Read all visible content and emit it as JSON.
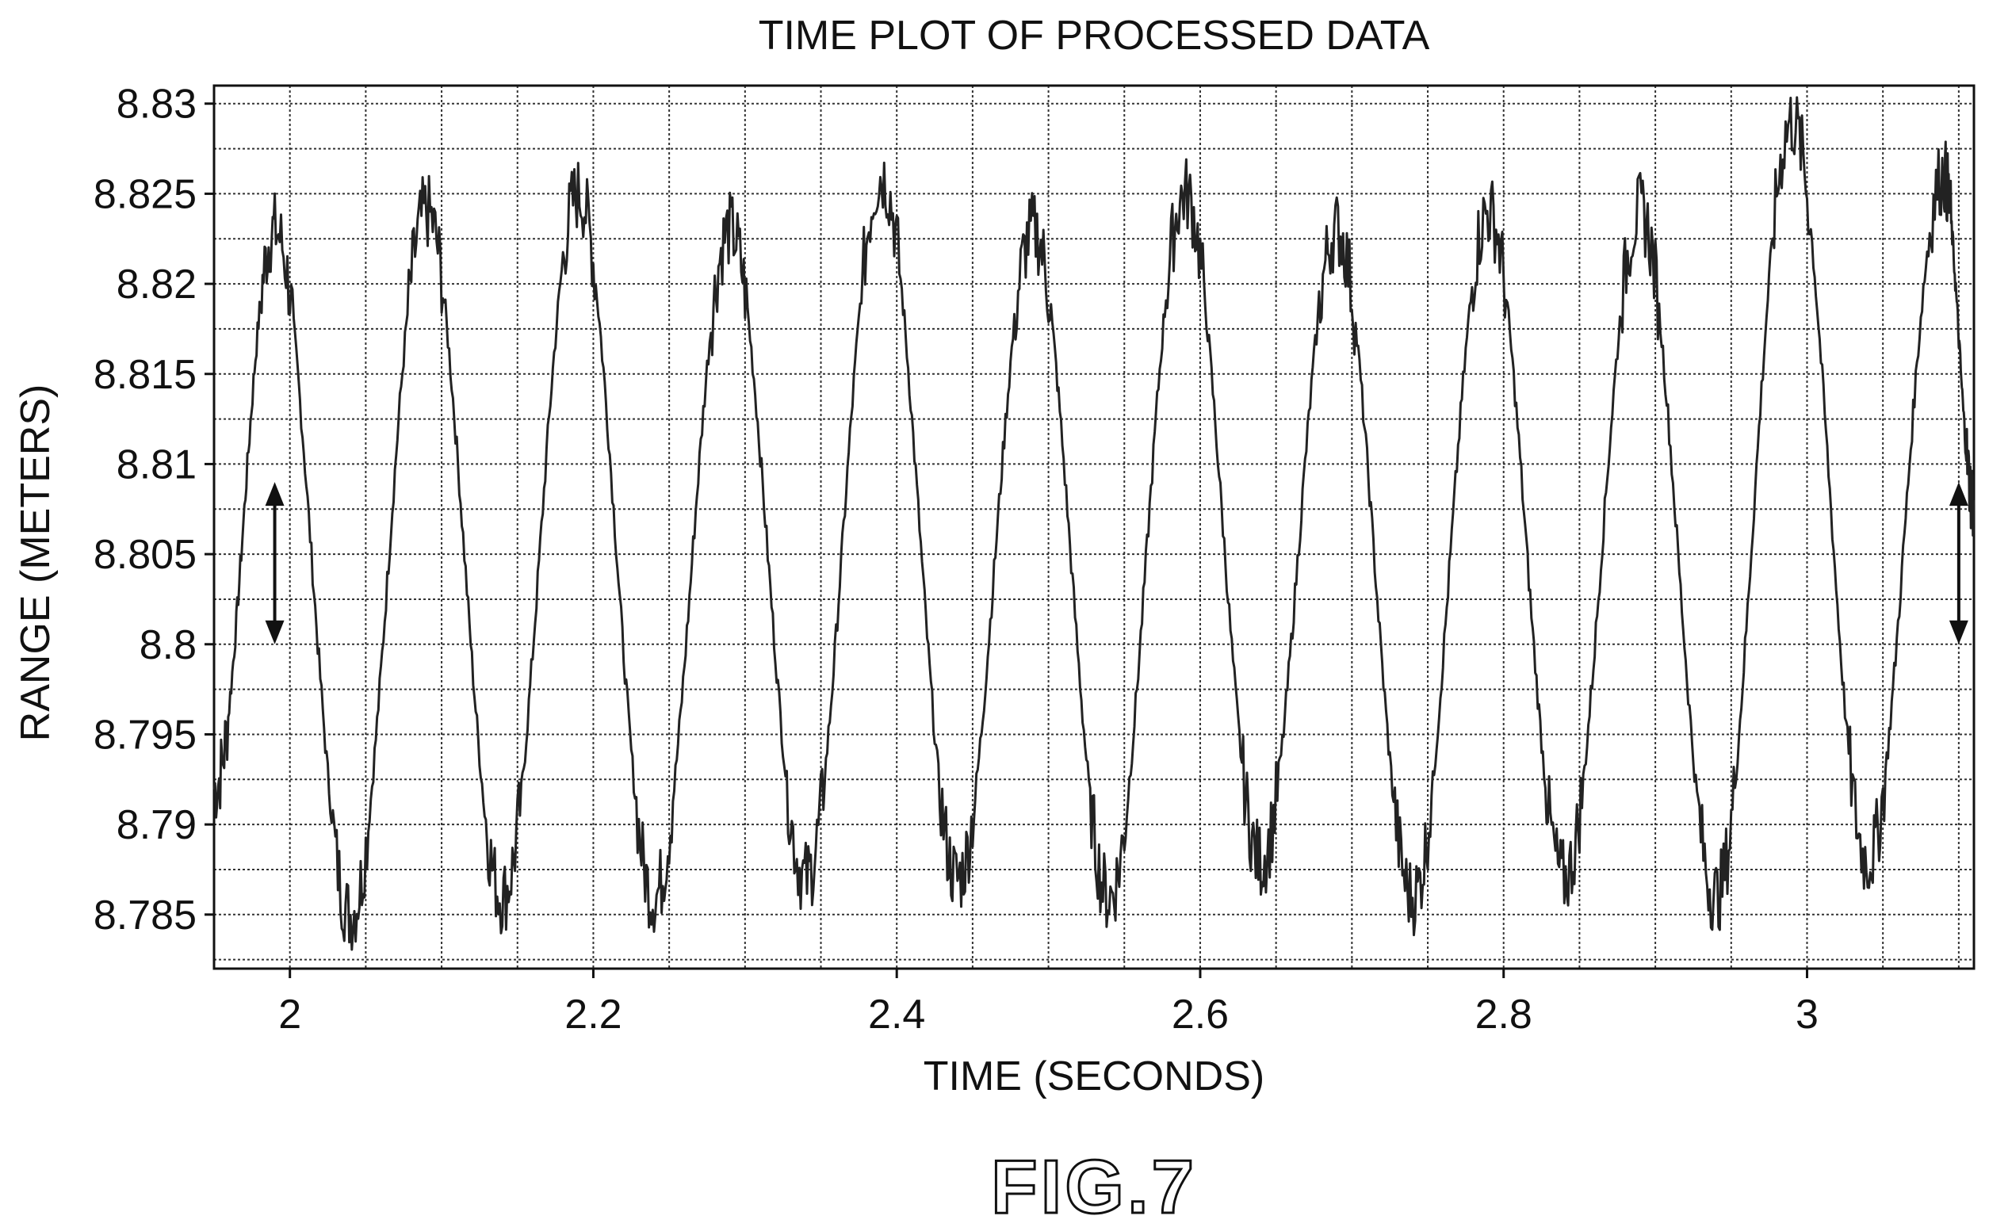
{
  "chart_data": {
    "type": "line",
    "title": "TIME PLOT OF PROCESSED DATA",
    "xlabel": "TIME (SECONDS)",
    "ylabel": "RANGE (METERS)",
    "xlim": [
      1.95,
      3.11
    ],
    "ylim": [
      8.782,
      8.831
    ],
    "xticks": [
      2,
      2.2,
      2.4,
      2.6,
      2.8,
      3
    ],
    "xtick_labels": [
      "2",
      "2.2",
      "2.4",
      "2.6",
      "2.8",
      "3"
    ],
    "yticks": [
      8.785,
      8.79,
      8.795,
      8.8,
      8.805,
      8.81,
      8.815,
      8.82,
      8.825,
      8.83
    ],
    "ytick_labels": [
      "8.785",
      "8.79",
      "8.795",
      "8.8",
      "8.805",
      "8.81",
      "8.815",
      "8.82",
      "8.825",
      "8.83"
    ],
    "grid": true,
    "series": [
      {
        "color": "#222222",
        "peaks": [
          {
            "x": 1.99,
            "y": 8.823
          },
          {
            "x": 2.09,
            "y": 8.824
          },
          {
            "x": 2.19,
            "y": 8.825
          },
          {
            "x": 2.29,
            "y": 8.823
          },
          {
            "x": 2.39,
            "y": 8.826
          },
          {
            "x": 2.49,
            "y": 8.823
          },
          {
            "x": 2.59,
            "y": 8.825
          },
          {
            "x": 2.69,
            "y": 8.823
          },
          {
            "x": 2.79,
            "y": 8.824
          },
          {
            "x": 2.89,
            "y": 8.824
          },
          {
            "x": 2.99,
            "y": 8.829
          },
          {
            "x": 3.09,
            "y": 8.826
          }
        ],
        "troughs": [
          {
            "x": 2.04,
            "y": 8.785
          },
          {
            "x": 2.14,
            "y": 8.786
          },
          {
            "x": 2.24,
            "y": 8.786
          },
          {
            "x": 2.34,
            "y": 8.787
          },
          {
            "x": 2.44,
            "y": 8.787
          },
          {
            "x": 2.54,
            "y": 8.786
          },
          {
            "x": 2.64,
            "y": 8.788
          },
          {
            "x": 2.74,
            "y": 8.786
          },
          {
            "x": 2.84,
            "y": 8.787
          },
          {
            "x": 2.94,
            "y": 8.786
          },
          {
            "x": 3.04,
            "y": 8.788
          }
        ],
        "start": {
          "x": 1.95,
          "y": 8.792
        },
        "end": {
          "x": 3.11,
          "y": 8.808
        }
      }
    ],
    "annotations": [
      {
        "type": "double-arrow",
        "x": 1.99,
        "y_from": 8.809,
        "y_to": 8.8
      },
      {
        "type": "double-arrow",
        "x": 3.1,
        "y_from": 8.809,
        "y_to": 8.8
      }
    ]
  },
  "figure_label": "FIG.7"
}
